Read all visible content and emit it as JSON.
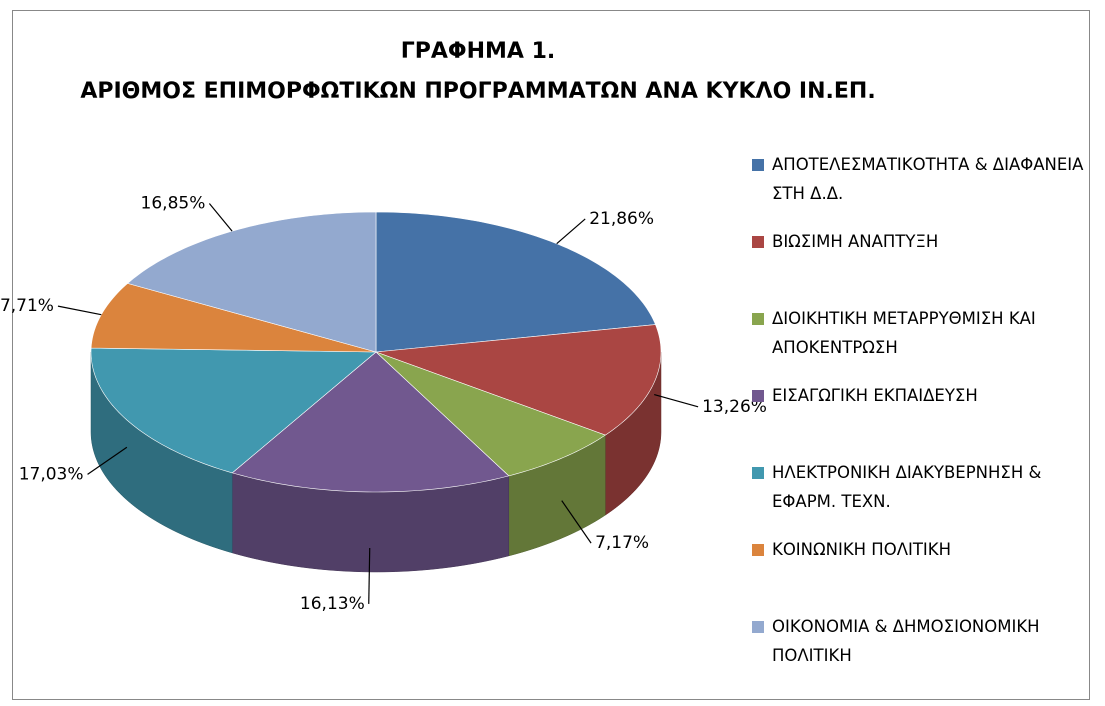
{
  "chart_data": {
    "type": "pie",
    "title": "ΓΡΑΦΗΜΑ 1.",
    "subtitle": "ΑΡΙΘΜΟΣ ΕΠΙΜΟΡΦΩΤΙΚΩΝ ΠΡΟΓΡΑΜΜΑΤΩΝ ΑΝΑ ΚΥΚΛΟ ΙΝ.ΕΠ.",
    "categories": [
      "ΑΠΟΤΕΛΕΣΜΑΤΙΚΟΤΗΤΑ & ΔΙΑΦΑΝΕΙΑ ΣΤΗ Δ.Δ.",
      "ΒΙΩΣΙΜΗ ΑΝΑΠΤΥΞΗ",
      "ΔΙΟΙΚΗΤΙΚΗ ΜΕΤΑΡΡΥΘΜΙΣΗ ΚΑΙ ΑΠΟΚΕΝΤΡΩΣΗ",
      "ΕΙΣΑΓΩΓΙΚΗ ΕΚΠΑΙΔΕΥΣΗ",
      "ΗΛΕΚΤΡΟΝΙΚΗ ΔΙΑΚΥΒΕΡΝΗΣΗ & ΕΦΑΡΜ. ΤΕΧΝ.",
      "ΚΟΙΝΩΝΙΚΗ ΠΟΛΙΤΙΚΗ",
      "ΟΙΚΟΝΟΜΙΑ & ΔΗΜΟΣΙΟΝΟΜΙΚΗ ΠΟΛΙΤΙΚΗ"
    ],
    "values": [
      21.86,
      13.26,
      7.17,
      16.13,
      17.03,
      7.71,
      16.85
    ],
    "value_labels": [
      "21,86%",
      "13,26%",
      "7,17%",
      "16,13%",
      "17,03%",
      "7,71%",
      "16,85%"
    ],
    "colors": [
      "#4572a7",
      "#aa4643",
      "#89a54e",
      "#71588f",
      "#4198af",
      "#db843d",
      "#93a9cf"
    ],
    "legend": "right"
  }
}
